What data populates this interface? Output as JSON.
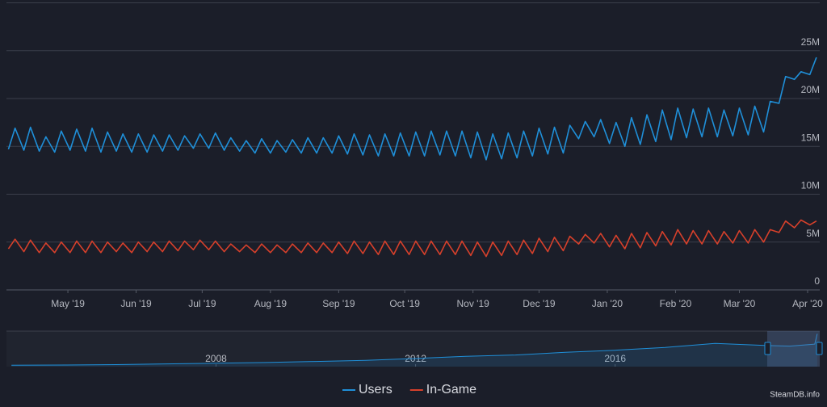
{
  "chart_data": [
    {
      "type": "line",
      "x": [
        3,
        6,
        10,
        13,
        17,
        20,
        24,
        27,
        31,
        34,
        38,
        41,
        45,
        48,
        52,
        55,
        59,
        62,
        66,
        69,
        73,
        76,
        80,
        83,
        87,
        90,
        94,
        97,
        101,
        104,
        108,
        111,
        115,
        118,
        122,
        125,
        129,
        132,
        136,
        139,
        143,
        146,
        150,
        153,
        157,
        160,
        164,
        167,
        171,
        174,
        178,
        181,
        185,
        188,
        192,
        195,
        199,
        202,
        206,
        209,
        213,
        216,
        220,
        223,
        227,
        230,
        234,
        237,
        241,
        244,
        248,
        251,
        255,
        258,
        262,
        265,
        269,
        272,
        276,
        279,
        283,
        286,
        290,
        293,
        297,
        300,
        304,
        307,
        311,
        314,
        318,
        321,
        325,
        328,
        332,
        335,
        339,
        342,
        346,
        349,
        353,
        356,
        360,
        363,
        367,
        370
      ],
      "xlim": [
        2.1,
        371.5
      ],
      "xticks": [
        {
          "value": 30,
          "label": "May '19"
        },
        {
          "value": 61,
          "label": "Jun '19"
        },
        {
          "value": 91,
          "label": "Jul '19"
        },
        {
          "value": 122,
          "label": "Aug '19"
        },
        {
          "value": 153,
          "label": "Sep '19"
        },
        {
          "value": 183,
          "label": "Oct '19"
        },
        {
          "value": 214,
          "label": "Nov '19"
        },
        {
          "value": 244,
          "label": "Dec '19"
        },
        {
          "value": 275,
          "label": "Jan '20"
        },
        {
          "value": 306,
          "label": "Feb '20"
        },
        {
          "value": 335,
          "label": "Mar '20"
        },
        {
          "value": 366,
          "label": "Apr '20"
        }
      ],
      "ylim": [
        0,
        30000000
      ],
      "yticks": [
        0,
        {
          "value": 5000000,
          "label": "5M"
        },
        {
          "value": 10000000,
          "label": "10M"
        },
        {
          "value": 15000000,
          "label": "15M"
        },
        {
          "value": 20000000,
          "label": "20M"
        },
        {
          "value": 25000000,
          "label": "25M"
        }
      ],
      "grid": true,
      "series": [
        {
          "name": "Users",
          "color": "#1f8fd8",
          "values": [
            14700000,
            16900000,
            14600000,
            17000000,
            14500000,
            16000000,
            14400000,
            16600000,
            14600000,
            16800000,
            14500000,
            16900000,
            14400000,
            16500000,
            14500000,
            16300000,
            14400000,
            16300000,
            14400000,
            16200000,
            14500000,
            16200000,
            14600000,
            16100000,
            14800000,
            16300000,
            14800000,
            16400000,
            14600000,
            15900000,
            14500000,
            15600000,
            14300000,
            15800000,
            14300000,
            15600000,
            14400000,
            15700000,
            14300000,
            15900000,
            14300000,
            15900000,
            14300000,
            16100000,
            14200000,
            16300000,
            14100000,
            16200000,
            14000000,
            16300000,
            14000000,
            16400000,
            14000000,
            16500000,
            14000000,
            16600000,
            14100000,
            16600000,
            14000000,
            16600000,
            13800000,
            16500000,
            13600000,
            16300000,
            13700000,
            16400000,
            13800000,
            16600000,
            14000000,
            16900000,
            14200000,
            17000000,
            14300000,
            17200000,
            15800000,
            17600000,
            16000000,
            17800000,
            15300000,
            17500000,
            15000000,
            18000000,
            15200000,
            18300000,
            15500000,
            18800000,
            15700000,
            19000000,
            15900000,
            18900000,
            16000000,
            19000000,
            16000000,
            18800000,
            16100000,
            19000000,
            16200000,
            19200000,
            16500000,
            19700000,
            19500000,
            22300000,
            22000000,
            22800000,
            22500000,
            24300000
          ]
        },
        {
          "name": "In-Game",
          "color": "#d7402b",
          "values": [
            4300000,
            5300000,
            4000000,
            5200000,
            3900000,
            4900000,
            3900000,
            5000000,
            3900000,
            5100000,
            3900000,
            5100000,
            3900000,
            5000000,
            4000000,
            4900000,
            3900000,
            5000000,
            4000000,
            5000000,
            4000000,
            5100000,
            4100000,
            5100000,
            4200000,
            5200000,
            4200000,
            5100000,
            4000000,
            4800000,
            4000000,
            4700000,
            3900000,
            4800000,
            3900000,
            4700000,
            3900000,
            4800000,
            3900000,
            4900000,
            3900000,
            4900000,
            3900000,
            5000000,
            3800000,
            5100000,
            3800000,
            5000000,
            3700000,
            5100000,
            3700000,
            5100000,
            3700000,
            5100000,
            3700000,
            5100000,
            3700000,
            5100000,
            3700000,
            5100000,
            3600000,
            5000000,
            3500000,
            5000000,
            3600000,
            5100000,
            3700000,
            5200000,
            3800000,
            5400000,
            4000000,
            5500000,
            4100000,
            5600000,
            4800000,
            5800000,
            4900000,
            5900000,
            4500000,
            5700000,
            4300000,
            5900000,
            4400000,
            6000000,
            4600000,
            6100000,
            4700000,
            6300000,
            4800000,
            6200000,
            4800000,
            6200000,
            4800000,
            6100000,
            4900000,
            6200000,
            4900000,
            6300000,
            5000000,
            6300000,
            6000000,
            7200000,
            6500000,
            7300000,
            6800000,
            7200000
          ]
        }
      ],
      "legend": "bottom",
      "watermark": "SteamDB.info"
    },
    {
      "type": "line",
      "x": [
        2003.9,
        2005,
        2006,
        2007,
        2008,
        2009,
        2010,
        2011,
        2012,
        2013,
        2014,
        2015,
        2016,
        2017,
        2018,
        2019,
        2019.5,
        2020,
        2020.05
      ],
      "xlim": [
        2003.8,
        2020.1
      ],
      "xticks": [
        2008,
        2012,
        2016
      ],
      "ylim": [
        0,
        26000000
      ],
      "series": [
        {
          "color": "#1f8fd8",
          "values": [
            1000000,
            1200000,
            1500000,
            2000000,
            2500000,
            3000000,
            3800000,
            4600000,
            6000000,
            7500000,
            8500000,
            10500000,
            12000000,
            14000000,
            17000000,
            15500000,
            15000000,
            16500000,
            24000000
          ]
        }
      ]
    }
  ]
}
